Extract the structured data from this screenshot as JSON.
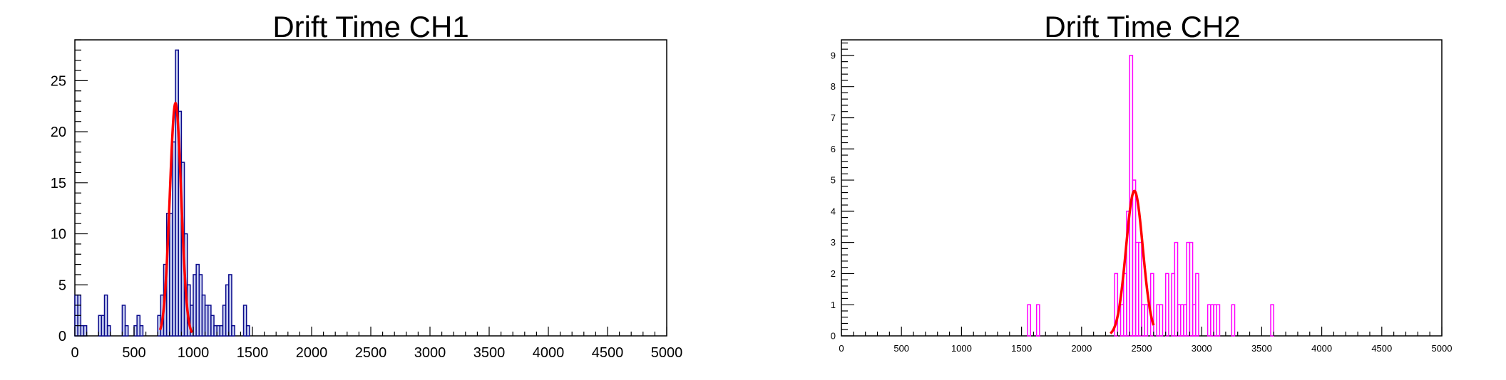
{
  "chart_data": [
    {
      "type": "histogram",
      "title": "Drift Time CH1",
      "xlabel": "",
      "ylabel": "",
      "xlim": [
        0,
        5000
      ],
      "ylim": [
        0,
        29
      ],
      "bin_width": 25,
      "x_ticks": [
        0,
        500,
        1000,
        1500,
        2000,
        2500,
        3000,
        3500,
        4000,
        4500,
        5000
      ],
      "x_tick_labels": [
        "0",
        "500",
        "1000",
        "1500",
        "2000",
        "2500",
        "3000",
        "3500",
        "4000",
        "4500",
        "5000"
      ],
      "y_ticks": [
        0,
        5,
        10,
        15,
        20,
        25
      ],
      "y_tick_labels": [
        "0",
        "5",
        "10",
        "15",
        "20",
        "25"
      ],
      "grid": false,
      "series": [
        {
          "kind": "histogram",
          "color": "#0a0a8c",
          "fill": "#c8d0f0",
          "bins": [
            [
              0,
              4
            ],
            [
              25,
              4
            ],
            [
              50,
              1
            ],
            [
              75,
              1
            ],
            [
              200,
              2
            ],
            [
              225,
              2
            ],
            [
              250,
              4
            ],
            [
              275,
              1
            ],
            [
              400,
              3
            ],
            [
              425,
              1
            ],
            [
              500,
              1
            ],
            [
              525,
              2
            ],
            [
              550,
              1
            ],
            [
              700,
              2
            ],
            [
              725,
              4
            ],
            [
              750,
              7
            ],
            [
              775,
              12
            ],
            [
              800,
              12
            ],
            [
              825,
              19
            ],
            [
              850,
              28
            ],
            [
              875,
              22
            ],
            [
              900,
              17
            ],
            [
              925,
              10
            ],
            [
              950,
              5
            ],
            [
              975,
              3
            ],
            [
              1000,
              6
            ],
            [
              1025,
              7
            ],
            [
              1050,
              6
            ],
            [
              1075,
              4
            ],
            [
              1100,
              3
            ],
            [
              1125,
              3
            ],
            [
              1150,
              2
            ],
            [
              1175,
              1
            ],
            [
              1200,
              1
            ],
            [
              1225,
              1
            ],
            [
              1250,
              3
            ],
            [
              1275,
              5
            ],
            [
              1300,
              6
            ],
            [
              1325,
              1
            ],
            [
              1425,
              3
            ],
            [
              1450,
              1
            ]
          ]
        },
        {
          "kind": "gaussian_fit",
          "color": "#ff0000",
          "amplitude": 22.8,
          "mean": 850,
          "sigma": 48,
          "range": [
            720,
            990
          ]
        }
      ]
    },
    {
      "type": "histogram",
      "title": "Drift Time CH2",
      "xlabel": "",
      "ylabel": "",
      "xlim": [
        0,
        5000
      ],
      "ylim": [
        0,
        9.5
      ],
      "bin_width": 25,
      "x_ticks": [
        0,
        500,
        1000,
        1500,
        2000,
        2500,
        3000,
        3500,
        4000,
        4500,
        5000
      ],
      "x_tick_labels": [
        "0",
        "500",
        "1000",
        "1500",
        "2000",
        "2500",
        "3000",
        "3500",
        "4000",
        "4500",
        "5000"
      ],
      "y_ticks": [
        0,
        1,
        2,
        3,
        4,
        5,
        6,
        7,
        8,
        9
      ],
      "y_tick_labels": [
        "0",
        "1",
        "2",
        "3",
        "4",
        "5",
        "6",
        "7",
        "8",
        "9"
      ],
      "grid": false,
      "series": [
        {
          "kind": "histogram",
          "color": "#ff00ff",
          "fill": "none",
          "bins": [
            [
              1550,
              1
            ],
            [
              1625,
              1
            ],
            [
              2275,
              2
            ],
            [
              2325,
              1
            ],
            [
              2350,
              2
            ],
            [
              2375,
              4
            ],
            [
              2400,
              9
            ],
            [
              2425,
              5
            ],
            [
              2450,
              3
            ],
            [
              2475,
              3
            ],
            [
              2500,
              1
            ],
            [
              2525,
              1
            ],
            [
              2575,
              2
            ],
            [
              2625,
              1
            ],
            [
              2650,
              1
            ],
            [
              2700,
              2
            ],
            [
              2750,
              2
            ],
            [
              2775,
              3
            ],
            [
              2800,
              1
            ],
            [
              2825,
              1
            ],
            [
              2850,
              1
            ],
            [
              2875,
              3
            ],
            [
              2900,
              3
            ],
            [
              2925,
              1
            ],
            [
              2950,
              2
            ],
            [
              3050,
              1
            ],
            [
              3075,
              1
            ],
            [
              3100,
              1
            ],
            [
              3125,
              1
            ],
            [
              3250,
              1
            ],
            [
              3575,
              1
            ]
          ]
        },
        {
          "kind": "gaussian_fit",
          "color": "#ff0000",
          "amplitude": 4.65,
          "mean": 2440,
          "sigma": 70,
          "range": [
            2240,
            2600
          ]
        }
      ]
    }
  ]
}
